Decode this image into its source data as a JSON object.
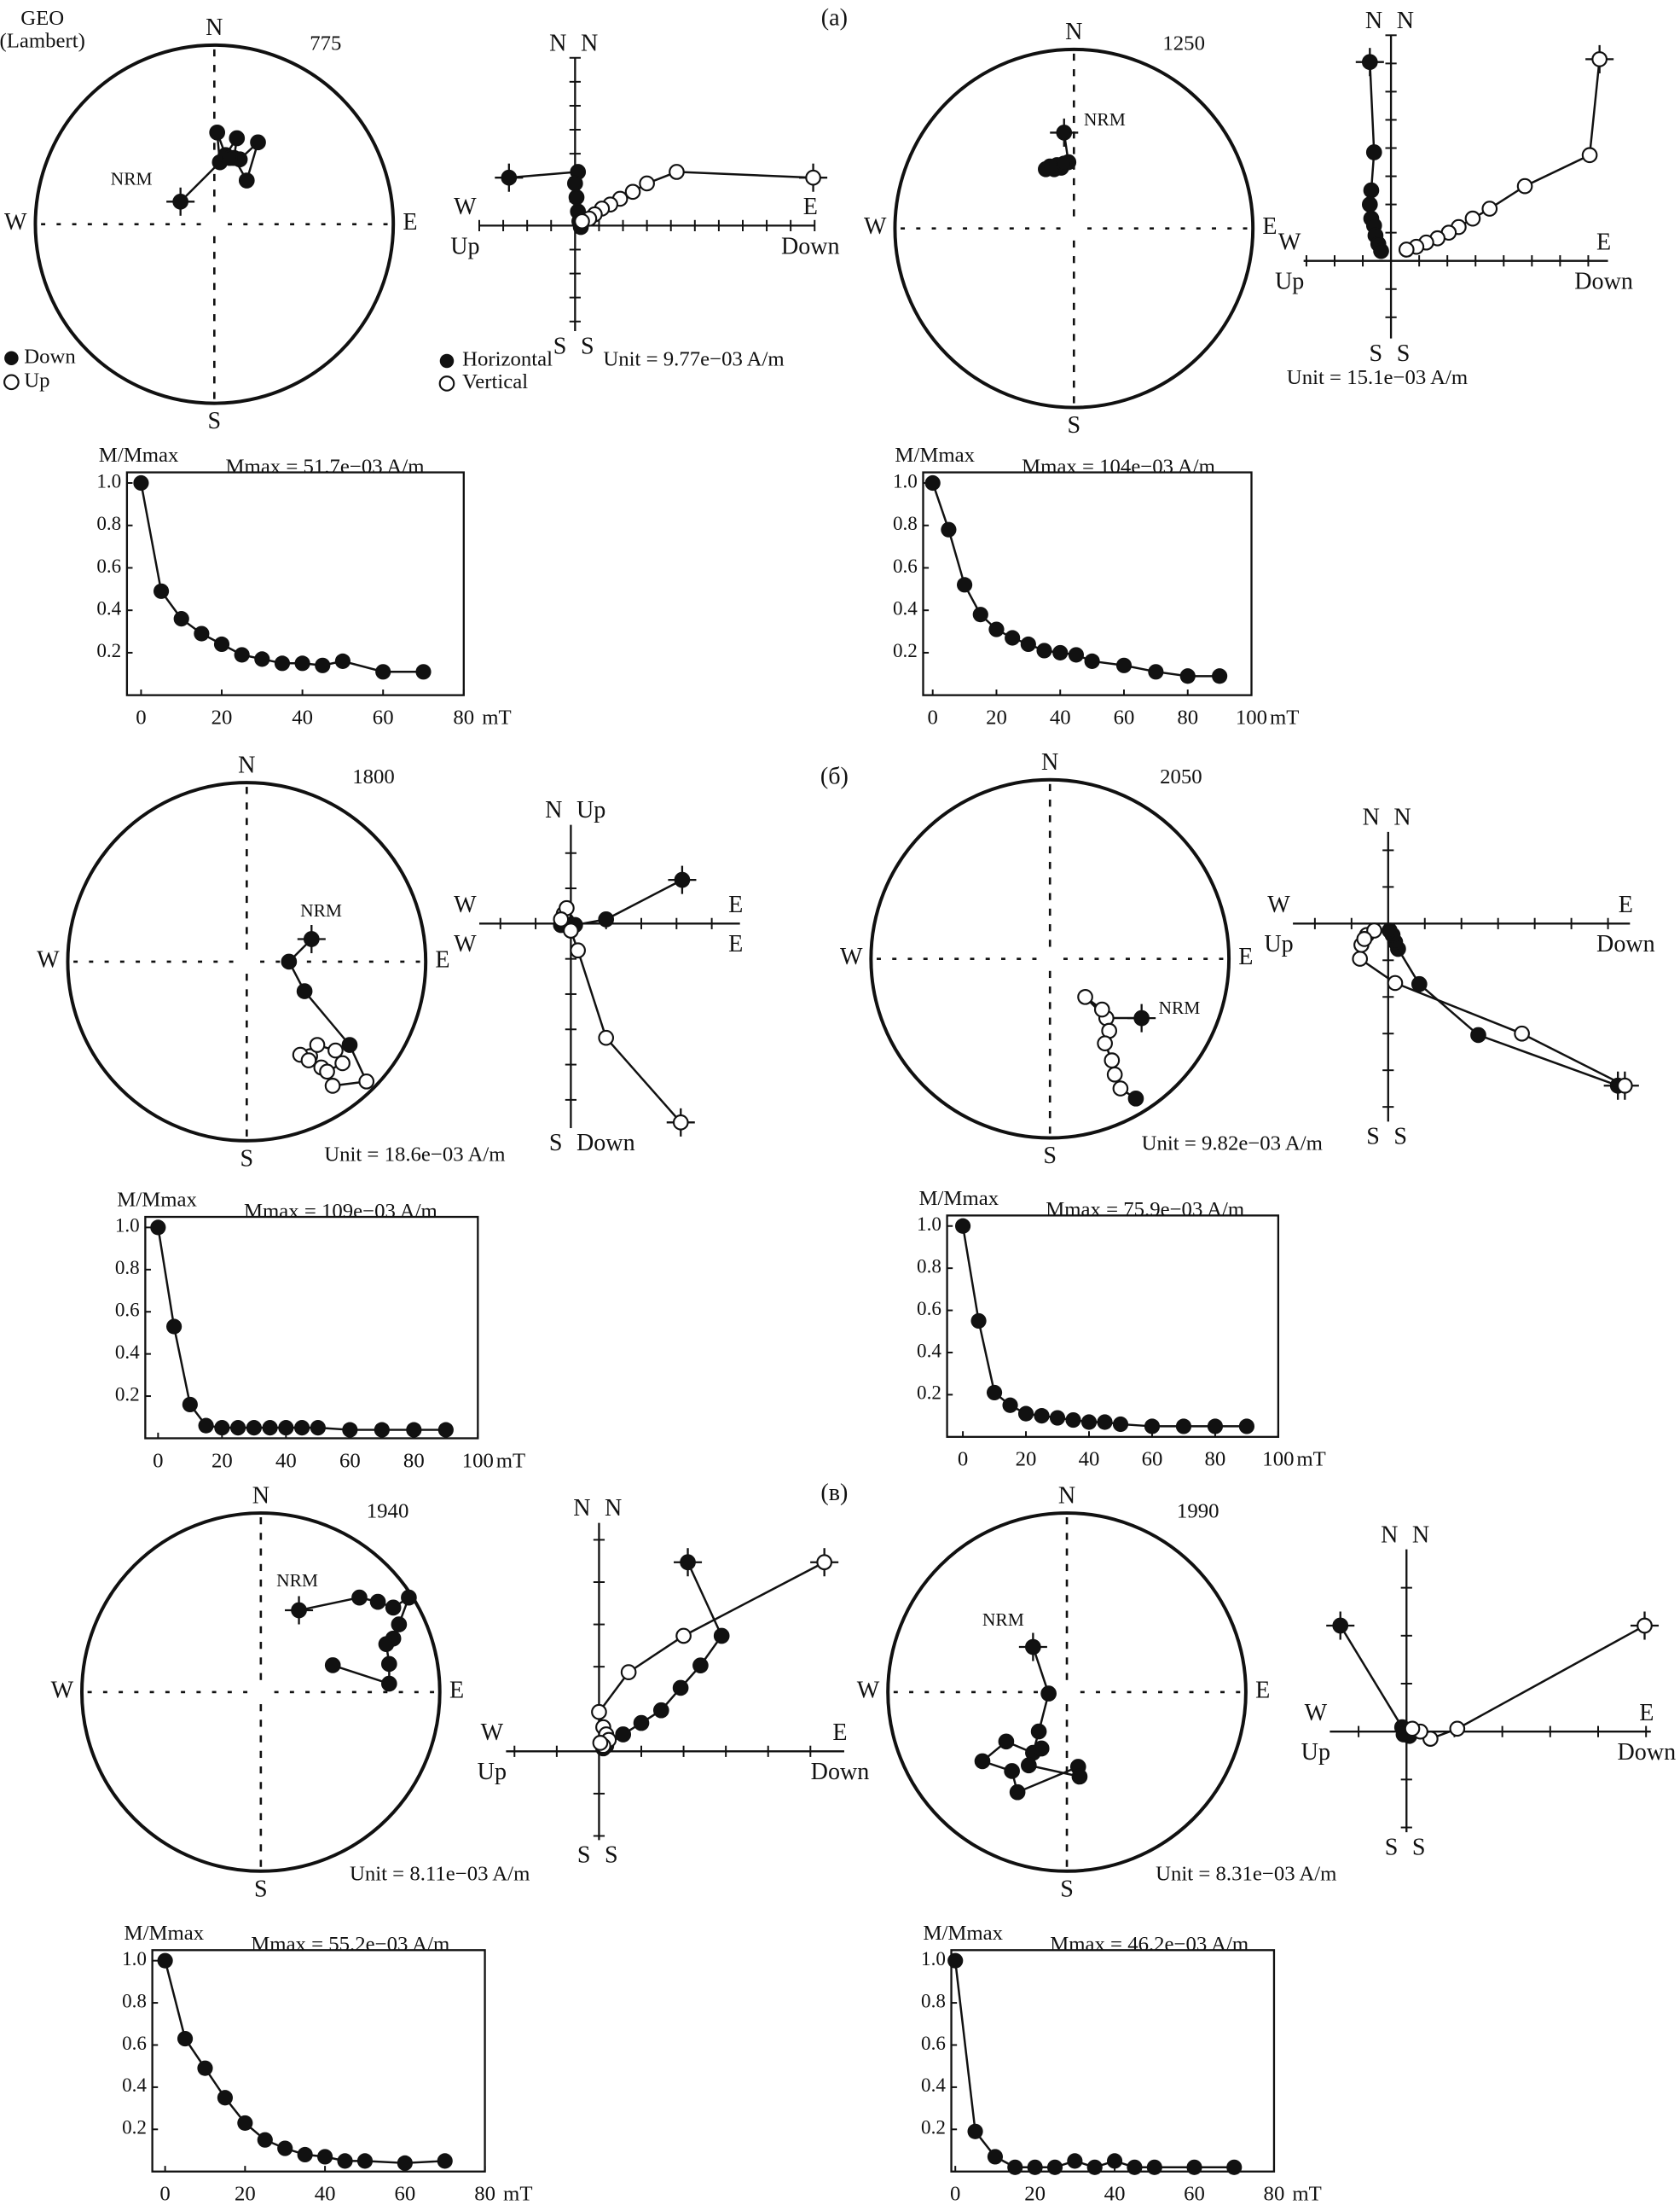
{
  "group_labels": [
    "(а)",
    "(б)",
    "(в)"
  ],
  "stereonet_legend": {
    "title": "GEO",
    "subtitle": "(Lambert)",
    "down": "Down",
    "up": "Up"
  },
  "zijderveld_legend": {
    "horizontal": "Horizontal",
    "vertical": "Vertical"
  },
  "chart_data": [
    {
      "type": "stereonet",
      "sample": "775",
      "directions": {
        "north": "N",
        "south": "S",
        "west": "W",
        "east": "E"
      },
      "annotation": "NRM",
      "x": [
        -0.189,
        0.031,
        0.016,
        0.063,
        0.126,
        0.11,
        0.181,
        0.244,
        0.142,
        0.087
      ],
      "y": [
        0.126,
        0.346,
        0.512,
        0.386,
        0.48,
        0.37,
        0.244,
        0.457,
        0.362,
        0.37
      ],
      "up": [
        false,
        false,
        false,
        false,
        false,
        false,
        false,
        false,
        false,
        false
      ]
    },
    {
      "type": "zijderveld",
      "axis_labels": {
        "top": [
          "N",
          "N"
        ],
        "bottom": [
          "S",
          "S"
        ],
        "left": [
          "W",
          "Up"
        ],
        "right": [
          "E",
          "Down"
        ]
      },
      "unit": "Unit = 9.77e−03 A/m",
      "xlim": [
        -4,
        10
      ],
      "ylim": [
        -4.4,
        7
      ],
      "xticks": [
        -4,
        -3,
        -2,
        -1,
        1,
        2,
        3,
        4,
        5,
        6,
        7,
        8,
        9,
        10
      ],
      "yticks": [
        -4,
        -3,
        -2,
        -1,
        1,
        2,
        3,
        4,
        5,
        6,
        7
      ],
      "series": [
        {
          "filled": true,
          "x": [
            -2.76,
            0.12,
            0,
            0.06,
            0.12,
            0.18,
            0.24
          ],
          "y": [
            2.0,
            2.24,
            1.76,
            1.18,
            0.59,
            0.18,
            -0.06
          ]
        },
        {
          "filled": false,
          "x": [
            9.94,
            4.24,
            3.0,
            2.41,
            1.88,
            1.47,
            1.12,
            0.82,
            0.59,
            0.29
          ],
          "y": [
            2.0,
            2.24,
            1.76,
            1.41,
            1.12,
            0.88,
            0.71,
            0.47,
            0.29,
            0.18
          ]
        }
      ]
    },
    {
      "type": "line",
      "ylabel": "M/Mmax",
      "title": "Mmax = 51.7e−03 A/m",
      "x_unit": "mT",
      "color": "#111111",
      "x": [
        0,
        5,
        10,
        15,
        20,
        25,
        30,
        35,
        40,
        45,
        50,
        60,
        70
      ],
      "values": [
        1.0,
        0.49,
        0.36,
        0.29,
        0.24,
        0.19,
        0.17,
        0.15,
        0.15,
        0.14,
        0.16,
        0.11,
        0.11
      ],
      "xlim": [
        -3.5,
        80
      ],
      "ylim": [
        0,
        1.05
      ],
      "xticks": [
        0,
        20,
        40,
        60,
        80
      ],
      "yticks": [
        0.2,
        0.4,
        0.6,
        0.8,
        {
          "value": 1,
          "label": "1.0"
        }
      ]
    },
    {
      "type": "stereonet",
      "sample": "1250",
      "directions": {
        "north": "N",
        "south": "S",
        "west": "W",
        "east": "E"
      },
      "annotation": "NRM",
      "x": [
        -0.055,
        -0.031,
        -0.071,
        -0.11,
        -0.157,
        -0.134,
        -0.094,
        -0.055
      ],
      "y": [
        0.535,
        0.37,
        0.339,
        0.331,
        0.331,
        0.346,
        0.354,
        0.362
      ],
      "up": [
        false,
        false,
        false,
        false,
        false,
        false,
        false,
        false
      ]
    },
    {
      "type": "zijderveld",
      "axis_labels": {
        "top": [
          "N",
          "N"
        ],
        "bottom": [
          "S",
          "S"
        ],
        "left": [
          "W",
          "Up"
        ],
        "right": [
          "E",
          "Down"
        ]
      },
      "unit": "Unit = 15.1e−03 A/m",
      "xlim": [
        -3.1,
        7.7
      ],
      "ylim": [
        -2.75,
        8
      ],
      "xticks": [
        -3,
        -2,
        -1,
        1,
        2,
        3,
        4,
        5,
        6,
        7
      ],
      "yticks": [
        -2,
        -1,
        1,
        2,
        3,
        4,
        5,
        6,
        7,
        8
      ],
      "series": [
        {
          "filled": true,
          "x": [
            -0.75,
            -0.6,
            -0.7,
            -0.75,
            -0.7,
            -0.6,
            -0.55,
            -0.45,
            -0.35
          ],
          "y": [
            7.05,
            3.85,
            2.5,
            2.0,
            1.5,
            1.25,
            0.9,
            0.6,
            0.35
          ]
        },
        {
          "filled": false,
          "x": [
            7.4,
            7.05,
            4.75,
            3.5,
            2.9,
            2.4,
            2.05,
            1.65,
            1.25,
            0.9,
            0.55
          ],
          "y": [
            7.15,
            3.75,
            2.65,
            1.85,
            1.5,
            1.2,
            1.0,
            0.8,
            0.65,
            0.5,
            0.4
          ]
        }
      ]
    },
    {
      "type": "line",
      "ylabel": "M/Mmax",
      "title": "Mmax = 104e−03 A/m",
      "x_unit": "mT",
      "color": "#111111",
      "x": [
        0,
        5,
        10,
        15,
        20,
        25,
        30,
        35,
        40,
        45,
        50,
        60,
        70,
        80,
        90
      ],
      "values": [
        1.0,
        0.78,
        0.52,
        0.38,
        0.31,
        0.27,
        0.24,
        0.21,
        0.2,
        0.19,
        0.16,
        0.14,
        0.11,
        0.09,
        0.09
      ],
      "xlim": [
        -3,
        100
      ],
      "ylim": [
        0,
        1.05
      ],
      "xticks": [
        0,
        20,
        40,
        60,
        80,
        100
      ],
      "yticks": [
        0.2,
        0.4,
        0.6,
        0.8,
        {
          "value": 1,
          "label": "1.0"
        }
      ]
    },
    {
      "type": "stereonet",
      "sample": "1800",
      "directions": {
        "north": "N",
        "south": "S",
        "west": "W",
        "east": "E"
      },
      "annotation": "NRM",
      "x": [
        0.362,
        0.236,
        0.323,
        0.575,
        0.669,
        0.48,
        0.417,
        0.354,
        0.299,
        0.394,
        0.496,
        0.535,
        0.449,
        0.346
      ],
      "y": [
        0.126,
        0,
        -0.165,
        -0.465,
        -0.669,
        -0.693,
        -0.591,
        -0.528,
        -0.52,
        -0.465,
        -0.496,
        -0.567,
        -0.614,
        -0.551
      ],
      "up": [
        false,
        false,
        false,
        false,
        true,
        true,
        true,
        true,
        true,
        true,
        true,
        true,
        true,
        true
      ]
    },
    {
      "type": "zijderveld",
      "axis_labels": {
        "top": [
          "N",
          "Up"
        ],
        "bottom": [
          "S",
          "Down"
        ],
        "left": [
          "W",
          "W"
        ],
        "right": [
          "E",
          "E"
        ]
      },
      "unit": "Unit = 18.6e−03 A/m",
      "xlim": [
        -2.6,
        4.8
      ],
      "ylim": [
        -5.8,
        2.8
      ],
      "xticks": [
        -2,
        -1,
        1,
        2,
        3,
        4
      ],
      "yticks": [
        -5,
        -4,
        -3,
        -2,
        -1,
        1,
        2
      ],
      "series": [
        {
          "filled": true,
          "x": [
            3.16,
            1.0,
            0.12,
            -0.08,
            -0.2,
            -0.12,
            -0.28
          ],
          "y": [
            1.24,
            0.12,
            -0.04,
            -0.08,
            0,
            0.08,
            -0.04
          ]
        },
        {
          "filled": false,
          "x": [
            3.12,
            1.0,
            0.2,
            0,
            -0.2,
            -0.12,
            -0.28
          ],
          "y": [
            -5.64,
            -3.24,
            -0.76,
            -0.2,
            0.28,
            0.44,
            0.12
          ]
        }
      ]
    },
    {
      "type": "line",
      "ylabel": "M/Mmax",
      "title": "Mmax = 109e−03 A/m",
      "x_unit": "mT",
      "color": "#111111",
      "x": [
        0,
        5,
        10,
        15,
        20,
        25,
        30,
        35,
        40,
        45,
        50,
        60,
        70,
        80,
        90
      ],
      "values": [
        1.0,
        0.53,
        0.16,
        0.06,
        0.05,
        0.05,
        0.05,
        0.05,
        0.05,
        0.05,
        0.05,
        0.04,
        0.04,
        0.04,
        0.04
      ],
      "xlim": [
        -4,
        100
      ],
      "ylim": [
        0,
        1.05
      ],
      "xticks": [
        0,
        20,
        40,
        60,
        80,
        100
      ],
      "yticks": [
        0.2,
        0.4,
        0.6,
        0.8,
        {
          "value": 1,
          "label": "1.0"
        }
      ]
    },
    {
      "type": "stereonet",
      "sample": "2050",
      "directions": {
        "north": "N",
        "south": "S",
        "west": "W",
        "east": "E"
      },
      "annotation": "NRM",
      "x": [
        0.512,
        0.315,
        0.197,
        0.291,
        0.331,
        0.307,
        0.346,
        0.362,
        0.394,
        0.48
      ],
      "y": [
        -0.331,
        -0.331,
        -0.213,
        -0.283,
        -0.402,
        -0.472,
        -0.567,
        -0.646,
        -0.724,
        -0.78
      ],
      "up": [
        false,
        true,
        true,
        true,
        true,
        true,
        true,
        true,
        true,
        false
      ]
    },
    {
      "type": "zijderveld",
      "axis_labels": {
        "top": [
          "N",
          "N"
        ],
        "bottom": [
          "S",
          "S"
        ],
        "left": [
          "W",
          "Up"
        ],
        "right": [
          "E",
          "Down"
        ]
      },
      "unit": "Unit = 9.82e−03 A/m",
      "xlim": [
        -2.6,
        6.6
      ],
      "ylim": [
        -5.4,
        2.5
      ],
      "xticks": [
        -2,
        -1,
        1,
        2,
        3,
        4,
        5,
        6
      ],
      "yticks": [
        -5,
        -4,
        -3,
        -2,
        -1,
        1,
        2
      ],
      "series": [
        {
          "filled": true,
          "x": [
            6.27,
            2.46,
            0.85,
            0.27,
            0.19,
            0.12,
            0.04
          ],
          "y": [
            -4.42,
            -3.04,
            -1.65,
            -0.69,
            -0.5,
            -0.31,
            -0.19
          ]
        },
        {
          "filled": false,
          "x": [
            6.46,
            3.65,
            0.19,
            -0.77,
            -0.73,
            -0.58,
            -0.38,
            -0.65
          ],
          "y": [
            -4.42,
            -3.0,
            -1.62,
            -0.96,
            -0.58,
            -0.31,
            -0.19,
            -0.42
          ]
        }
      ]
    },
    {
      "type": "line",
      "ylabel": "M/Mmax",
      "title": "Mmax = 75.9e−03 A/m",
      "x_unit": "mT",
      "color": "#111111",
      "x": [
        0,
        5,
        10,
        15,
        20,
        25,
        30,
        35,
        40,
        45,
        50,
        60,
        70,
        80,
        90
      ],
      "values": [
        1.0,
        0.55,
        0.21,
        0.15,
        0.11,
        0.1,
        0.09,
        0.08,
        0.07,
        0.07,
        0.06,
        0.05,
        0.05,
        0.05,
        0.05
      ],
      "xlim": [
        -5,
        100
      ],
      "ylim": [
        0,
        1.05
      ],
      "xticks": [
        0,
        20,
        40,
        60,
        80,
        100
      ],
      "yticks": [
        0.2,
        0.4,
        0.6,
        0.8,
        {
          "value": 1,
          "label": "1.0"
        }
      ]
    },
    {
      "type": "stereonet",
      "sample": "1940",
      "directions": {
        "north": "N",
        "south": "S",
        "west": "W",
        "east": "E"
      },
      "annotation": "NRM",
      "x": [
        0.213,
        0.551,
        0.654,
        0.74,
        0.827,
        0.772,
        0.74,
        0.701,
        0.717,
        0.717,
        0.402
      ],
      "y": [
        0.457,
        0.528,
        0.504,
        0.472,
        0.528,
        0.378,
        0.299,
        0.268,
        0.157,
        0.047,
        0.15
      ],
      "up": [
        false,
        false,
        false,
        false,
        false,
        false,
        false,
        false,
        false,
        false,
        false
      ]
    },
    {
      "type": "zijderveld",
      "axis_labels": {
        "top": [
          "N",
          "N"
        ],
        "bottom": [
          "S",
          "S"
        ],
        "left": [
          "W",
          "Up"
        ],
        "right": [
          "E",
          "Down"
        ]
      },
      "unit": "Unit = 8.11e−03 A/m",
      "xlim": [
        -2.2,
        5.8
      ],
      "ylim": [
        -2.1,
        5.4
      ],
      "xticks": [
        -2,
        -1,
        1,
        2,
        3,
        4,
        5
      ],
      "yticks": [
        -2,
        -1,
        1,
        2,
        3,
        4,
        5
      ],
      "series": [
        {
          "filled": true,
          "x": [
            2.1,
            2.9,
            2.4,
            1.93,
            1.47,
            1.0,
            0.57,
            0.17,
            0.1
          ],
          "y": [
            4.47,
            2.73,
            2.03,
            1.5,
            0.97,
            0.67,
            0.4,
            0.13,
            0.07
          ]
        },
        {
          "filled": false,
          "x": [
            5.33,
            2.0,
            0.7,
            0,
            0.1,
            0.17,
            0.23,
            0.1,
            0.03
          ],
          "y": [
            4.47,
            2.73,
            1.87,
            0.93,
            0.57,
            0.4,
            0.27,
            0.13,
            0.2
          ]
        }
      ]
    },
    {
      "type": "line",
      "ylabel": "M/Mmax",
      "title": "Mmax = 55.2e−03 A/m",
      "x_unit": "mT",
      "color": "#111111",
      "x": [
        0,
        5,
        10,
        15,
        20,
        25,
        30,
        35,
        40,
        45,
        50,
        60,
        70
      ],
      "values": [
        1.0,
        0.63,
        0.49,
        0.35,
        0.23,
        0.15,
        0.11,
        0.08,
        0.07,
        0.05,
        0.05,
        0.04,
        0.05
      ],
      "xlim": [
        -3.2,
        80
      ],
      "ylim": [
        0,
        1.05
      ],
      "xticks": [
        0,
        20,
        40,
        60,
        80
      ],
      "yticks": [
        0.2,
        0.4,
        0.6,
        0.8,
        {
          "value": 1,
          "label": "1.0"
        }
      ]
    },
    {
      "type": "stereonet",
      "sample": "1990",
      "directions": {
        "north": "N",
        "south": "S",
        "west": "W",
        "east": "E"
      },
      "annotation": "NRM",
      "x": [
        -0.189,
        -0.102,
        -0.157,
        -0.189,
        -0.339,
        -0.472,
        -0.307,
        -0.276,
        0.063,
        0.071,
        -0.213,
        -0.142
      ],
      "y": [
        0.252,
        -0.008,
        -0.22,
        -0.339,
        -0.276,
        -0.386,
        -0.441,
        -0.559,
        -0.417,
        -0.472,
        -0.409,
        -0.315
      ],
      "up": [
        false,
        false,
        false,
        false,
        false,
        false,
        false,
        false,
        false,
        false,
        false,
        false
      ]
    },
    {
      "type": "zijderveld",
      "axis_labels": {
        "top": [
          "N",
          "N"
        ],
        "bottom": [
          "S",
          "S"
        ],
        "left": [
          "W",
          "Up"
        ],
        "right": [
          "E",
          "Down"
        ]
      },
      "unit": "Unit = 8.31e−03 A/m",
      "xlim": [
        -1.6,
        5.1
      ],
      "ylim": [
        -2.1,
        3.8
      ],
      "xticks": [
        -1,
        1,
        2,
        3,
        4,
        5
      ],
      "yticks": [
        -2,
        -1,
        1,
        2,
        3
      ],
      "series": [
        {
          "filled": true,
          "x": [
            -1.38,
            -0.09,
            0,
            0.06,
            -0.06
          ],
          "y": [
            2.21,
            0.09,
            -0.03,
            -0.09,
            -0.06
          ]
        },
        {
          "filled": false,
          "x": [
            4.97,
            1.06,
            0.5,
            0.29,
            0.12
          ],
          "y": [
            2.21,
            0.06,
            -0.15,
            0,
            0.06
          ]
        }
      ]
    },
    {
      "type": "line",
      "ylabel": "M/Mmax",
      "title": "Mmax = 46.2e−03 A/m",
      "x_unit": "mT",
      "color": "#111111",
      "x": [
        0,
        5,
        10,
        15,
        20,
        25,
        30,
        35,
        40,
        45,
        50,
        60,
        70
      ],
      "values": [
        1.0,
        0.19,
        0.07,
        0.02,
        0.02,
        0.02,
        0.05,
        0.02,
        0.05,
        0.02,
        0.02,
        0.02,
        0.02
      ],
      "xlim": [
        -1,
        80
      ],
      "ylim": [
        0,
        1.05
      ],
      "xticks": [
        0,
        20,
        40,
        60,
        80
      ],
      "yticks": [
        0.2,
        0.4,
        0.6,
        0.8,
        {
          "value": 1,
          "label": "1.0"
        }
      ]
    }
  ]
}
